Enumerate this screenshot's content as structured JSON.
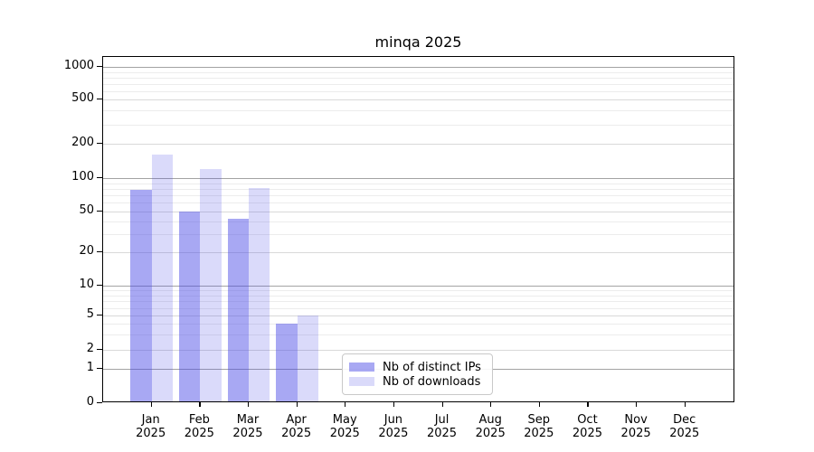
{
  "chart_data": {
    "type": "bar",
    "title": "minqa 2025",
    "x_tick_labels": {
      "months": [
        "Jan",
        "Feb",
        "Mar",
        "Apr",
        "May",
        "Jun",
        "Jul",
        "Aug",
        "Sep",
        "Oct",
        "Nov",
        "Dec"
      ],
      "year": "2025"
    },
    "y_ticks": [
      0,
      1,
      2,
      5,
      10,
      20,
      50,
      100,
      200,
      500,
      1000
    ],
    "y_scale": "log-like (symlog)",
    "ylim": [
      0,
      1250
    ],
    "grid": true,
    "legend_position": "lower center",
    "series": [
      {
        "name": "Nb of distinct IPs",
        "color": "#4646e6",
        "alpha": 0.47,
        "values": [
          78,
          50,
          43,
          4,
          0,
          0,
          0,
          0,
          0,
          0,
          0,
          0
        ]
      },
      {
        "name": "Nb of downloads",
        "color": "#4646e6",
        "alpha": 0.2,
        "values": [
          160,
          120,
          82,
          5,
          0,
          0,
          0,
          0,
          0,
          0,
          0,
          0
        ]
      }
    ]
  }
}
